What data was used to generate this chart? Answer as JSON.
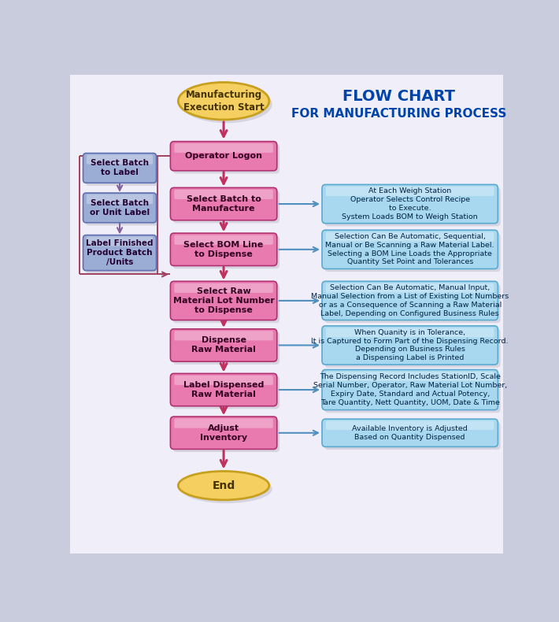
{
  "title_line1": "FLOW CHART",
  "title_line2": "FOR MANUFACTURING PROCESS",
  "title_color": "#0044AA",
  "title_fontsize1": 14,
  "title_fontsize2": 11,
  "main_boxes": [
    {
      "label": "Operator Logon"
    },
    {
      "label": "Select Batch to\nManufacture"
    },
    {
      "label": "Select BOM Line\nto Dispense"
    },
    {
      "label": "Select Raw\nMaterial Lot Number\nto Dispense"
    },
    {
      "label": "Dispense\nRaw Material"
    },
    {
      "label": "Label Dispensed\nRaw Material"
    },
    {
      "label": "Adjust\nInventory"
    }
  ],
  "left_boxes": [
    {
      "label": "Select Batch\nto Label"
    },
    {
      "label": "Select Batch\nor Unit Label"
    },
    {
      "label": "Label Finished\nProduct Batch\n/Units"
    }
  ],
  "right_boxes": [
    {
      "label": "At Each Weigh Station\nOperator Selects Control Recipe\nto Execute.\nSystem Loads BOM to Weigh Station"
    },
    {
      "label": "Selection Can Be Automatic, Sequential,\nManual or Be Scanning a Raw Material Label.\nSelecting a BOM Line Loads the Appropriate\nQuantity Set Point and Tolerances"
    },
    {
      "label": "Selection Can Be Automatic, Manual Input,\nManual Selection from a List of Existing Lot Numbers\nor as a Consequence of Scanning a Raw Material\nLabel, Depending on Configured Business Rules"
    },
    {
      "label": "When Quanity is in Tolerance,\nIt is Captured to Form Part of the Dispensing Record.\nDepending on Business Rules\na Dispensing Label is Printed"
    },
    {
      "label": "The Dispensing Record Includes StationID, Scale\nSerial Number, Operator, Raw Material Lot Number,\nExpiry Date, Standard and Actual Potency,\nTare Quantity, Nett Quantity, UOM, Date & Time"
    },
    {
      "label": "Available Inventory is Adjusted\nBased on Quantity Dispensed"
    }
  ],
  "start_label": "Manufacturing\nExecution Start",
  "end_label": "End",
  "main_face": "#E87AB0",
  "main_edge": "#B03070",
  "main_highlight": "#F5C0D8",
  "main_text": "#330022",
  "left_face": "#9BADD4",
  "left_edge": "#6070B0",
  "left_text": "#220033",
  "right_face": "#A8D8F0",
  "right_edge": "#5AAAD0",
  "right_text": "#002244",
  "oval_face": "#F5D060",
  "oval_edge": "#C8A020",
  "oval_text": "#443300",
  "arrow_main": "#C03060",
  "arrow_left": "#8060A0",
  "arrow_right": "#5090C0",
  "loop_color": "#A04060",
  "bg_inner": "#F0EEF8",
  "bg_outer": "#C8CCDC"
}
